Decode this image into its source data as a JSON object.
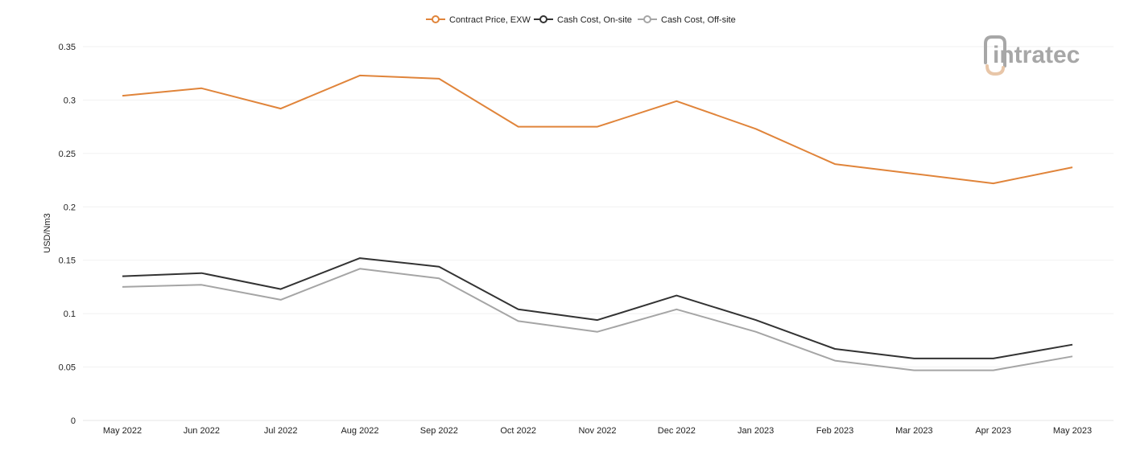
{
  "chart_data": {
    "type": "line",
    "title": "",
    "xlabel": "",
    "ylabel": "USD/Nm3",
    "ylim": [
      0,
      0.35
    ],
    "yticks": [
      0,
      0.05,
      0.1,
      0.15,
      0.2,
      0.25,
      0.3,
      0.35
    ],
    "ytick_labels": [
      "0",
      "0.05",
      "0.1",
      "0.15",
      "0.2",
      "0.25",
      "0.3",
      "0.35"
    ],
    "grid": true,
    "legend_position": "top-center",
    "categories": [
      "May 2022",
      "Jun 2022",
      "Jul 2022",
      "Aug 2022",
      "Sep 2022",
      "Oct 2022",
      "Nov 2022",
      "Dec 2022",
      "Jan 2023",
      "Feb 2023",
      "Mar 2023",
      "Apr 2023",
      "May 2023"
    ],
    "series": [
      {
        "name": "Contract Price, EXW",
        "color": "#e0843a",
        "values": [
          0.304,
          0.311,
          0.292,
          0.323,
          0.32,
          0.275,
          0.275,
          0.299,
          0.273,
          0.24,
          0.231,
          0.222,
          0.237
        ]
      },
      {
        "name": "Cash Cost, On-site",
        "color": "#333333",
        "values": [
          0.135,
          0.138,
          0.123,
          0.152,
          0.144,
          0.104,
          0.094,
          0.117,
          0.094,
          0.067,
          0.058,
          0.058,
          0.071
        ]
      },
      {
        "name": "Cash Cost, Off-site",
        "color": "#a5a5a5",
        "values": [
          0.125,
          0.127,
          0.113,
          0.142,
          0.133,
          0.093,
          0.083,
          0.104,
          0.083,
          0.056,
          0.047,
          0.047,
          0.06
        ]
      }
    ]
  },
  "logo": {
    "text": "intratec",
    "color": "#a7a7a7",
    "accent": "#e8c6a8"
  }
}
